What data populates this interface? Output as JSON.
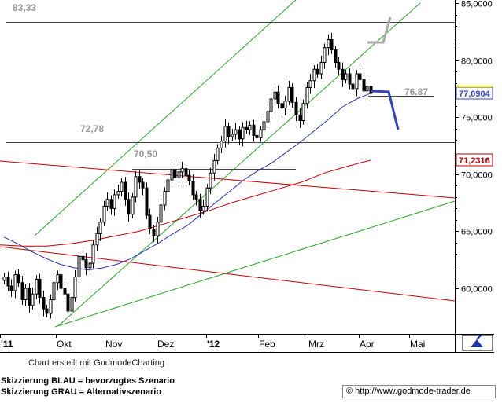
{
  "chart_data": {
    "type": "candlestick",
    "title": "",
    "ylim": [
      57500,
      86000
    ],
    "y_ticks": [
      {
        "value": 60000,
        "label": "60,0000"
      },
      {
        "value": 65000,
        "label": "65,0000"
      },
      {
        "value": 70000,
        "label": "70,0000"
      },
      {
        "value": 75000,
        "label": "75,0000"
      },
      {
        "value": 80000,
        "label": "80,0000"
      },
      {
        "value": 85000,
        "label": "85,0000"
      }
    ],
    "x_ticks": [
      "'11",
      "Okt",
      "Nov",
      "Dez",
      "'12",
      "Feb",
      "Mrz",
      "Apr",
      "Mai"
    ],
    "grid": false,
    "price_badges": [
      {
        "value": 77090.4,
        "label": "77,0904",
        "color": "#3344cc"
      },
      {
        "value": 71231.6,
        "label": "71,2316",
        "color": "#cc0000"
      }
    ],
    "levels": [
      {
        "label": "83,33",
        "value": 83330
      },
      {
        "label": "72,78",
        "value": 72780
      },
      {
        "label": "70,50",
        "value": 70500
      },
      {
        "label": "76,87",
        "value": 76870
      }
    ],
    "scenarios": [
      {
        "name": "bevorzugtes Szenario",
        "color": "#3344bb"
      },
      {
        "name": "Alternativszenario",
        "color": "#aaaaaa"
      }
    ],
    "series": [
      {
        "name": "",
        "kind": "candles",
        "color": "#000000",
        "closes": [
          61000,
          60200,
          59800,
          61200,
          60500,
          59000,
          60000,
          58500,
          59500,
          60800,
          59200,
          58200,
          57800,
          59000,
          60500,
          61200,
          60000,
          59500,
          58000,
          59200,
          61000,
          62800,
          62500,
          61800,
          62200,
          63800,
          64800,
          65800,
          67200,
          67800,
          67000,
          68200,
          68500,
          69300,
          67800,
          66500,
          68000,
          69800,
          69300,
          68800,
          66400,
          65200,
          64600,
          65800,
          67300,
          68500,
          69500,
          70400,
          69700,
          70200,
          70500,
          69900,
          69400,
          68200,
          67800,
          66800,
          67200,
          68800,
          70100,
          71200,
          72300,
          72900,
          74200,
          73300,
          73500,
          73900,
          73100,
          74100,
          73900,
          74300,
          73400,
          73200,
          73900,
          74600,
          75500,
          76600,
          77200,
          76200,
          75800,
          76400,
          77600,
          76300,
          75200,
          74700,
          76200,
          77600,
          78200,
          79200,
          78800,
          79800,
          81100,
          81800,
          80900,
          79800,
          79200,
          78300,
          78800,
          77900,
          77500,
          78800,
          78300,
          77300,
          77700,
          77091
        ]
      },
      {
        "name": "",
        "kind": "ma-blue",
        "color": "#2233bb",
        "values": [
          64500,
          63900,
          63200,
          62600,
          62100,
          61800,
          61600,
          61800,
          62100,
          62600,
          63300,
          64000,
          64800,
          65500,
          66500,
          67500,
          68500,
          69500,
          70300,
          71000,
          71900,
          72800,
          73800,
          74800,
          75900,
          76600,
          77091
        ]
      },
      {
        "name": "",
        "kind": "ma-red",
        "color": "#cc0000",
        "values": [
          63800,
          63700,
          63700,
          63900,
          64200,
          64600,
          65000,
          65600,
          66200,
          66800,
          67500,
          68100,
          68700,
          69300,
          70100,
          70700,
          71232
        ]
      }
    ]
  },
  "footer": {
    "credit": "Chart erstellt mit GodmodeCharting",
    "scenario_blue": "Skizzierung BLAU = bevorzugtes Szenario",
    "scenario_grey": "Skizzierung GRAU = Alternativszenario",
    "copyright": "© http://www.godmode-trader.de"
  }
}
